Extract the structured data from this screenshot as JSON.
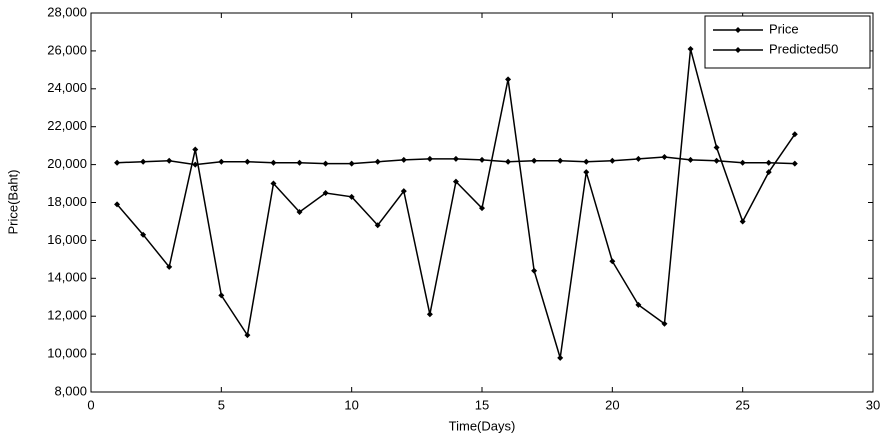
{
  "chart_data": {
    "type": "line",
    "x_label": "Time(Days)",
    "y_label": "Price(Baht)",
    "x": [
      1,
      2,
      3,
      4,
      5,
      6,
      7,
      8,
      9,
      10,
      11,
      12,
      13,
      14,
      15,
      16,
      17,
      18,
      19,
      20,
      21,
      22,
      23,
      24,
      25,
      26,
      27
    ],
    "series": [
      {
        "name": "Price",
        "color": "#000000",
        "values": [
          17900,
          16300,
          14600,
          20800,
          13100,
          11000,
          19000,
          17500,
          18500,
          18300,
          16800,
          18600,
          12100,
          19100,
          17700,
          24500,
          14400,
          9800,
          19600,
          14900,
          12600,
          11600,
          26100,
          20900,
          17000,
          19600,
          21600
        ]
      },
      {
        "name": "Predicted50",
        "color": "#000000",
        "values": [
          20100,
          20150,
          20200,
          20000,
          20150,
          20150,
          20100,
          20100,
          20050,
          20050,
          20150,
          20250,
          20300,
          20300,
          20250,
          20150,
          20200,
          20200,
          20150,
          20200,
          20300,
          20400,
          20250,
          20200,
          20100,
          20100,
          20050
        ]
      }
    ],
    "xlim": [
      0,
      30
    ],
    "xticks": [
      0,
      5,
      10,
      15,
      20,
      25,
      30
    ],
    "ylim": [
      8000,
      28000
    ],
    "yticks": [
      {
        "value": 8000,
        "label": "8,000"
      },
      {
        "value": 10000,
        "label": "10,000"
      },
      {
        "value": 12000,
        "label": "12,000"
      },
      {
        "value": 14000,
        "label": "14,000"
      },
      {
        "value": 16000,
        "label": "16,000"
      },
      {
        "value": 18000,
        "label": "18,000"
      },
      {
        "value": 20000,
        "label": "20,000"
      },
      {
        "value": 22000,
        "label": "22,000"
      },
      {
        "value": 24000,
        "label": "24,000"
      },
      {
        "value": 26000,
        "label": "26,000"
      },
      {
        "value": 28000,
        "label": "28,000"
      }
    ],
    "grid": false,
    "legend": "top-right"
  }
}
